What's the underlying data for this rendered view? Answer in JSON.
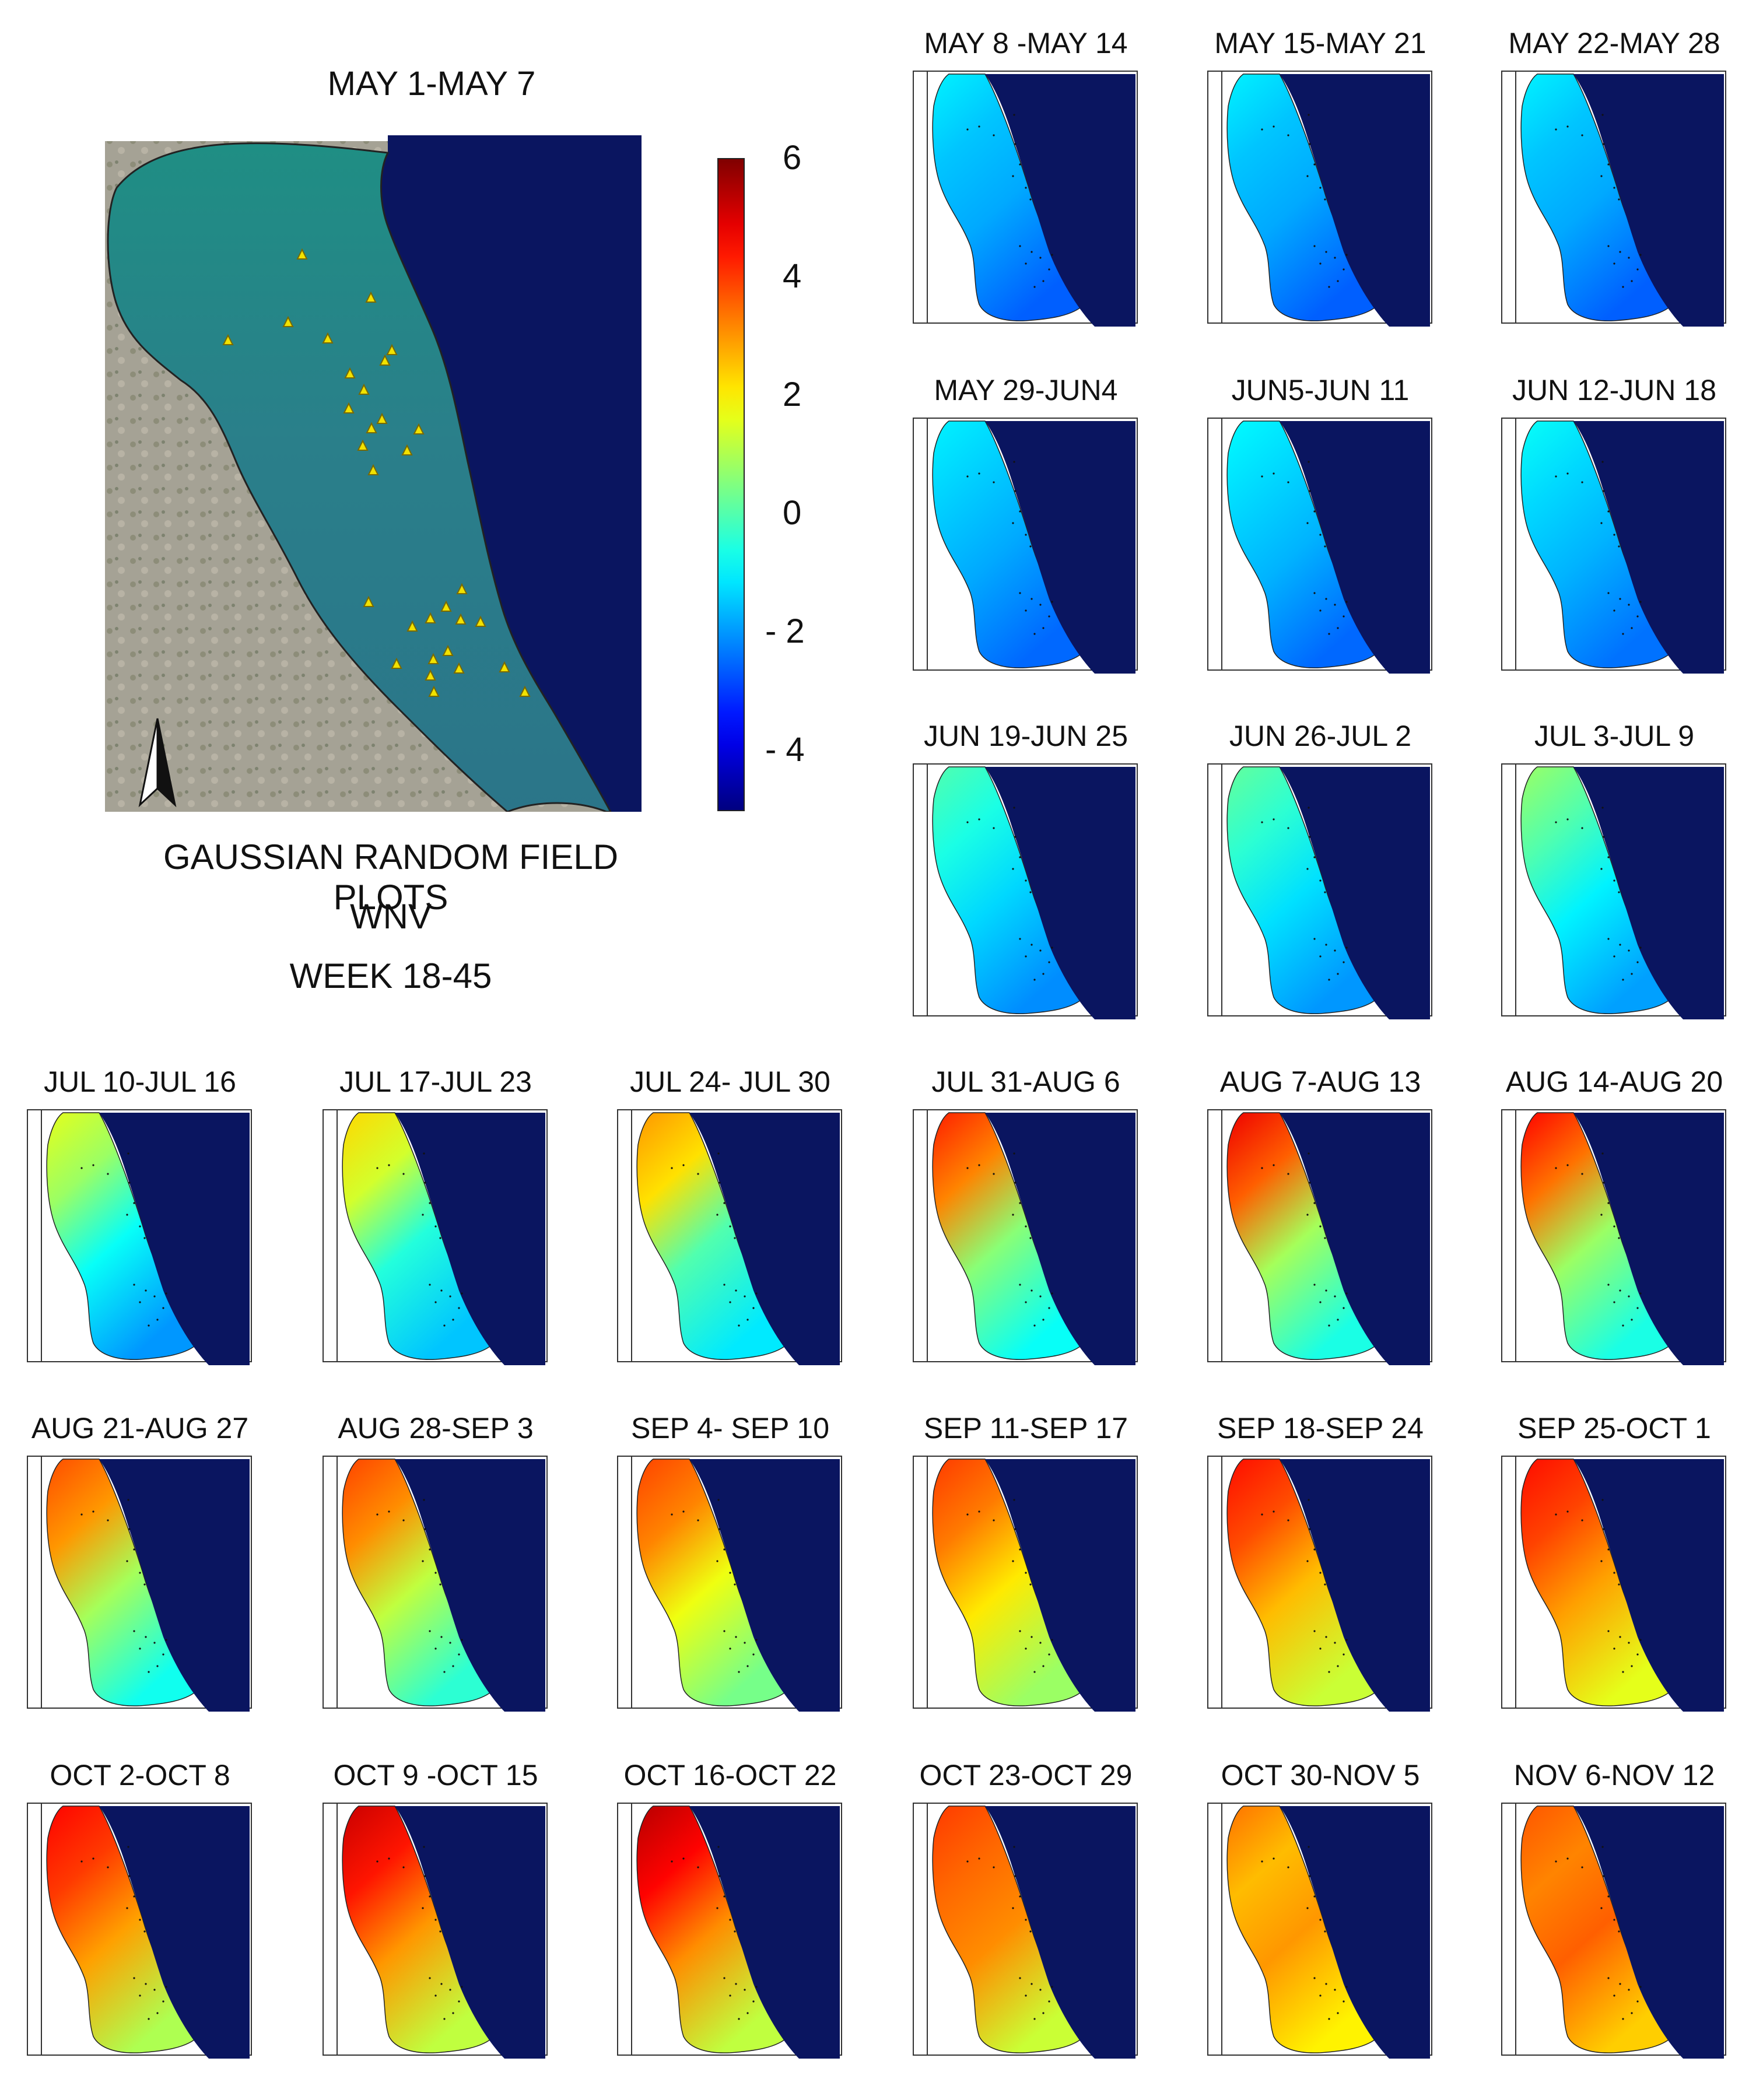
{
  "main": {
    "title": "MAY 1-MAY 7",
    "caption_lines": [
      "GAUSSIAN RANDOM FIELD PLOTS",
      "WNV",
      "WEEK 18-45"
    ],
    "north_arrow": "north-arrow-icon",
    "trap_marker": "triangle-icon"
  },
  "colorbar": {
    "ticks": [
      "6",
      "4",
      "2",
      "0",
      "- 2",
      "- 4"
    ],
    "min": -5,
    "max": 6,
    "colormap": "jet"
  },
  "colors": {
    "sea": "#0a1560",
    "marker": "#f2e200",
    "land": "#a7a49a"
  },
  "panels": [
    {
      "label": "MAY 8 -MAY 14",
      "levels": {
        "nw": -1.0,
        "ne": -1.5,
        "mid": -1.8,
        "south": -2.6
      }
    },
    {
      "label": "MAY 15-MAY 21",
      "levels": {
        "nw": -1.0,
        "ne": -1.5,
        "mid": -1.8,
        "south": -2.6
      }
    },
    {
      "label": "MAY 22-MAY 28",
      "levels": {
        "nw": -1.0,
        "ne": -1.5,
        "mid": -1.8,
        "south": -2.6
      }
    },
    {
      "label": "MAY 29-JUN4",
      "levels": {
        "nw": -1.0,
        "ne": -1.4,
        "mid": -1.8,
        "south": -2.5
      }
    },
    {
      "label": "JUN5-JUN 11",
      "levels": {
        "nw": -0.9,
        "ne": -1.3,
        "mid": -1.7,
        "south": -2.5
      }
    },
    {
      "label": "JUN 12-JUN 18",
      "levels": {
        "nw": -0.8,
        "ne": -1.3,
        "mid": -1.7,
        "south": -2.4
      }
    },
    {
      "label": "JUN 19-JUN 25",
      "levels": {
        "nw": 0.0,
        "ne": -0.6,
        "mid": -1.3,
        "south": -2.1
      }
    },
    {
      "label": "JUN 26-JUL 2",
      "levels": {
        "nw": 0.2,
        "ne": -0.4,
        "mid": -1.2,
        "south": -2.0
      }
    },
    {
      "label": "JUL 3-JUL 9",
      "levels": {
        "nw": 0.8,
        "ne": 0.0,
        "mid": -1.0,
        "south": -1.9
      }
    },
    {
      "label": "JUL 10-JUL 16",
      "levels": {
        "nw": 1.6,
        "ne": 0.8,
        "mid": -0.8,
        "south": -2.0
      }
    },
    {
      "label": "JUL 17-JUL 23",
      "levels": {
        "nw": 2.3,
        "ne": 1.4,
        "mid": -0.5,
        "south": -1.5
      }
    },
    {
      "label": "JUL 24- JUL 30",
      "levels": {
        "nw": 3.0,
        "ne": 2.2,
        "mid": 0.0,
        "south": -1.1
      }
    },
    {
      "label": "JUL 31-AUG 6",
      "levels": {
        "nw": 4.3,
        "ne": 3.2,
        "mid": 0.6,
        "south": -0.8
      }
    },
    {
      "label": "AUG 7-AUG 13",
      "levels": {
        "nw": 4.8,
        "ne": 3.6,
        "mid": 0.9,
        "south": -0.6
      }
    },
    {
      "label": "AUG 14-AUG 20",
      "levels": {
        "nw": 4.6,
        "ne": 3.4,
        "mid": 0.8,
        "south": -0.6
      }
    },
    {
      "label": "AUG 21-AUG 27",
      "levels": {
        "nw": 3.8,
        "ne": 3.0,
        "mid": 0.9,
        "south": -0.7
      }
    },
    {
      "label": "AUG 28-SEP 3",
      "levels": {
        "nw": 3.9,
        "ne": 3.1,
        "mid": 1.2,
        "south": -0.4
      }
    },
    {
      "label": "SEP 4- SEP 10",
      "levels": {
        "nw": 3.9,
        "ne": 3.2,
        "mid": 1.7,
        "south": 0.4
      }
    },
    {
      "label": "SEP 11-SEP 17",
      "levels": {
        "nw": 4.0,
        "ne": 3.3,
        "mid": 2.1,
        "south": 0.8
      }
    },
    {
      "label": "SEP 18-SEP 24",
      "levels": {
        "nw": 4.5,
        "ne": 3.8,
        "mid": 2.6,
        "south": 1.3
      }
    },
    {
      "label": "SEP 25-OCT 1",
      "levels": {
        "nw": 4.5,
        "ne": 3.9,
        "mid": 2.9,
        "south": 1.6
      }
    },
    {
      "label": "OCT 2-OCT 8",
      "levels": {
        "nw": 4.6,
        "ne": 4.0,
        "mid": 2.9,
        "south": 1.0
      }
    },
    {
      "label": "OCT 9 -OCT 15",
      "levels": {
        "nw": 5.2,
        "ne": 4.4,
        "mid": 3.0,
        "south": 1.2
      }
    },
    {
      "label": "OCT 16-OCT 22",
      "levels": {
        "nw": 5.4,
        "ne": 4.6,
        "mid": 3.1,
        "south": 1.2
      }
    },
    {
      "label": "OCT 23-OCT 29",
      "levels": {
        "nw": 4.0,
        "ne": 3.5,
        "mid": 3.1,
        "south": 1.3
      }
    },
    {
      "label": "OCT 30-NOV 5",
      "levels": {
        "nw": 3.4,
        "ne": 2.6,
        "mid": 3.0,
        "south": 2.0
      }
    },
    {
      "label": "NOV 6-NOV 12",
      "levels": {
        "nw": 3.7,
        "ne": 3.2,
        "mid": 3.6,
        "south": 2.4
      }
    }
  ]
}
